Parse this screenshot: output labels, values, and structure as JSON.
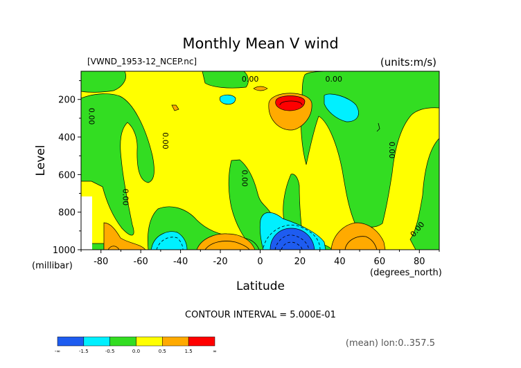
{
  "chart_data": {
    "type": "heatmap",
    "title": "Monthly Mean V wind",
    "dataset_label": "[VWND_1953-12_NCEP.nc]",
    "units_label": "(units:m/s)",
    "xlabel": "Latitude",
    "ylabel": "Level",
    "y_unit_label": "(millibar)",
    "x_unit_label": "(degrees_north)",
    "xlim": [
      -90,
      90
    ],
    "ylim": [
      1000,
      50
    ],
    "x_ticks": [
      {
        "value": -80,
        "label": "-80"
      },
      {
        "value": -60,
        "label": "-60"
      },
      {
        "value": -40,
        "label": "-40"
      },
      {
        "value": -20,
        "label": "-20"
      },
      {
        "value": 0,
        "label": "0"
      },
      {
        "value": 20,
        "label": "20"
      },
      {
        "value": 40,
        "label": "40"
      },
      {
        "value": 60,
        "label": "60"
      },
      {
        "value": 80,
        "label": "80"
      }
    ],
    "y_ticks": [
      {
        "value": 200,
        "label": "200"
      },
      {
        "value": 400,
        "label": "400"
      },
      {
        "value": 600,
        "label": "600"
      },
      {
        "value": 800,
        "label": "800"
      },
      {
        "value": 1000,
        "label": "1000"
      }
    ],
    "contour_interval_text": "CONTOUR INTERVAL = 5.000E-01",
    "contour_labels": [
      {
        "text": "0.00",
        "lat": -5,
        "level": 105,
        "rotate": 0
      },
      {
        "text": "0.00",
        "lat": 37,
        "level": 105,
        "rotate": 0
      },
      {
        "text": "0.00",
        "lat": -86,
        "level": 290,
        "rotate": 90
      },
      {
        "text": "0.00",
        "lat": -49,
        "level": 420,
        "rotate": 90
      },
      {
        "text": "0.00",
        "lat": -9,
        "level": 620,
        "rotate": 90
      },
      {
        "text": "0.00",
        "lat": -69,
        "level": 720,
        "rotate": 90
      },
      {
        "text": "0.00",
        "lat": 65,
        "level": 470,
        "rotate": 90
      },
      {
        "text": "0.00",
        "lat": 80,
        "level": 900,
        "rotate": -50
      }
    ],
    "colorbar": {
      "levels": [
        {
          "label": "-∞",
          "color": "#1e5cf0"
        },
        {
          "label": "-1.5",
          "color": "#00f0ff"
        },
        {
          "label": "-0.5",
          "color": "#33dd22"
        },
        {
          "label": "0.0",
          "color": "#ffff00"
        },
        {
          "label": "0.5",
          "color": "#ffaa00"
        },
        {
          "label": "1.5",
          "color": "#ff0000"
        },
        {
          "label": "∞",
          "color": ""
        }
      ]
    },
    "footer_note": "(mean) lon:0..357.5",
    "colors": {
      "blue": "#1e5cf0",
      "cyan": "#00f0ff",
      "green": "#33dd22",
      "yellow": "#ffff00",
      "orange": "#ffaa00",
      "red": "#ff0000"
    }
  }
}
